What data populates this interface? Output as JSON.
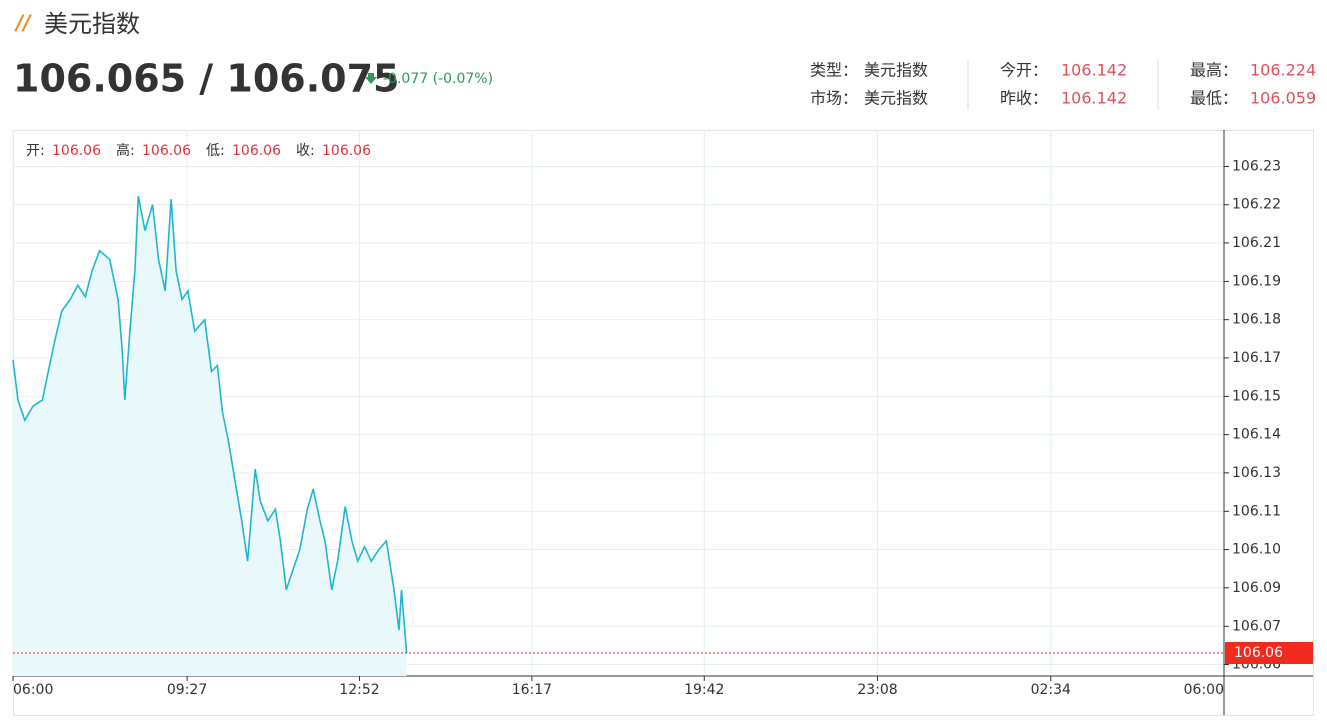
{
  "header": {
    "title": "美元指数",
    "price": "106.065 / 106.075",
    "change": "-0.077 (-0.07%)",
    "info": [
      [
        {
          "label": "类型：",
          "value": "美元指数"
        },
        {
          "label": "今开：",
          "value": "106.142"
        },
        {
          "label": "最高：",
          "value": "106.224"
        }
      ],
      [
        {
          "label": "市场：",
          "value": "美元指数"
        },
        {
          "label": "昨收：",
          "value": "106.142"
        },
        {
          "label": "最低：",
          "value": "106.059"
        }
      ]
    ]
  },
  "chart_data": {
    "type": "line",
    "ohlc": [
      {
        "label": "开:",
        "value": "106.06"
      },
      {
        "label": "高:",
        "value": "106.06"
      },
      {
        "label": "低:",
        "value": "106.06"
      },
      {
        "label": "收:",
        "value": "106.06"
      }
    ],
    "x": [
      0,
      6,
      14,
      24,
      35,
      42,
      50,
      58,
      68,
      77,
      86,
      94,
      103,
      115,
      125,
      130,
      133,
      139,
      145,
      149,
      157,
      166,
      173,
      181,
      188,
      194,
      201,
      208,
      216,
      228,
      236,
      243,
      249,
      256,
      264,
      272,
      279,
      288,
      294,
      303,
      312,
      318,
      325,
      333,
      341,
      350,
      357,
      365,
      371,
      379,
      386,
      395,
      403,
      410,
      418,
      426,
      435,
      444,
      453,
      459,
      462,
      468
    ],
    "series": [
      {
        "color": "#1fb6d0",
        "values": [
          106.167,
          106.153,
          106.146,
          106.151,
          106.153,
          106.163,
          106.174,
          106.184,
          106.188,
          106.193,
          106.189,
          106.198,
          106.205,
          106.202,
          106.188,
          106.17,
          106.153,
          106.177,
          106.198,
          106.224,
          106.212,
          106.221,
          106.202,
          106.191,
          106.223,
          106.198,
          106.188,
          106.191,
          106.177,
          106.181,
          106.163,
          106.165,
          106.149,
          106.139,
          106.125,
          106.111,
          106.097,
          106.129,
          106.118,
          106.111,
          106.115,
          106.104,
          106.087,
          106.094,
          106.101,
          106.115,
          106.122,
          106.111,
          106.104,
          106.087,
          106.097,
          106.116,
          106.104,
          106.097,
          106.102,
          106.097,
          106.101,
          106.104,
          106.087,
          106.073,
          106.087,
          106.065
        ]
      }
    ],
    "xlim": [
      0,
      1440
    ],
    "xticks": [
      {
        "value": 0,
        "label": "06:00"
      },
      {
        "value": 207,
        "label": "09:27"
      },
      {
        "value": 412,
        "label": "12:52"
      },
      {
        "value": 617,
        "label": "16:17"
      },
      {
        "value": 822,
        "label": "19:42"
      },
      {
        "value": 1028,
        "label": "23:08"
      },
      {
        "value": 1234,
        "label": "02:34"
      },
      {
        "value": 1440,
        "label": "06:00"
      }
    ],
    "ylim": [
      106.057,
      106.247
    ],
    "yticks": [
      {
        "value": 106.061,
        "label": "106.06"
      },
      {
        "value": 106.0743,
        "label": "106.07"
      },
      {
        "value": 106.0877,
        "label": "106.09"
      },
      {
        "value": 106.101,
        "label": "106.10"
      },
      {
        "value": 106.1143,
        "label": "106.11"
      },
      {
        "value": 106.1277,
        "label": "106.13"
      },
      {
        "value": 106.141,
        "label": "106.14"
      },
      {
        "value": 106.1543,
        "label": "106.15"
      },
      {
        "value": 106.1677,
        "label": "106.17"
      },
      {
        "value": 106.181,
        "label": "106.18"
      },
      {
        "value": 106.1943,
        "label": "106.19"
      },
      {
        "value": 106.2077,
        "label": "106.21"
      },
      {
        "value": 106.221,
        "label": "106.22"
      },
      {
        "value": 106.2343,
        "label": "106.23"
      }
    ],
    "last": {
      "value": 106.065,
      "label": "106.06"
    },
    "grid": true
  }
}
